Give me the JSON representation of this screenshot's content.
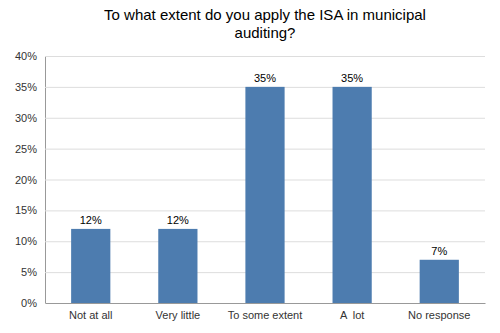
{
  "chart_data": {
    "type": "bar",
    "title": "To what extent do you apply the ISA in municipal\nauditing?",
    "categories": [
      "Not at all",
      "Very little",
      "To some extent",
      "A  lot",
      "No response"
    ],
    "values": [
      12,
      12,
      35,
      35,
      7
    ],
    "value_labels": [
      "12%",
      "12%",
      "35%",
      "35%",
      "7%"
    ],
    "data_labels": true,
    "color": "#4d7caf",
    "ylim": [
      0,
      40
    ],
    "yticks": [
      {
        "value": 0,
        "label": "0%"
      },
      {
        "value": 5,
        "label": "5%"
      },
      {
        "value": 10,
        "label": "10%"
      },
      {
        "value": 15,
        "label": "15%"
      },
      {
        "value": 20,
        "label": "20%"
      },
      {
        "value": 25,
        "label": "25%"
      },
      {
        "value": 30,
        "label": "30%"
      },
      {
        "value": 35,
        "label": "35%"
      },
      {
        "value": 40,
        "label": "40%"
      }
    ],
    "grid": true
  }
}
